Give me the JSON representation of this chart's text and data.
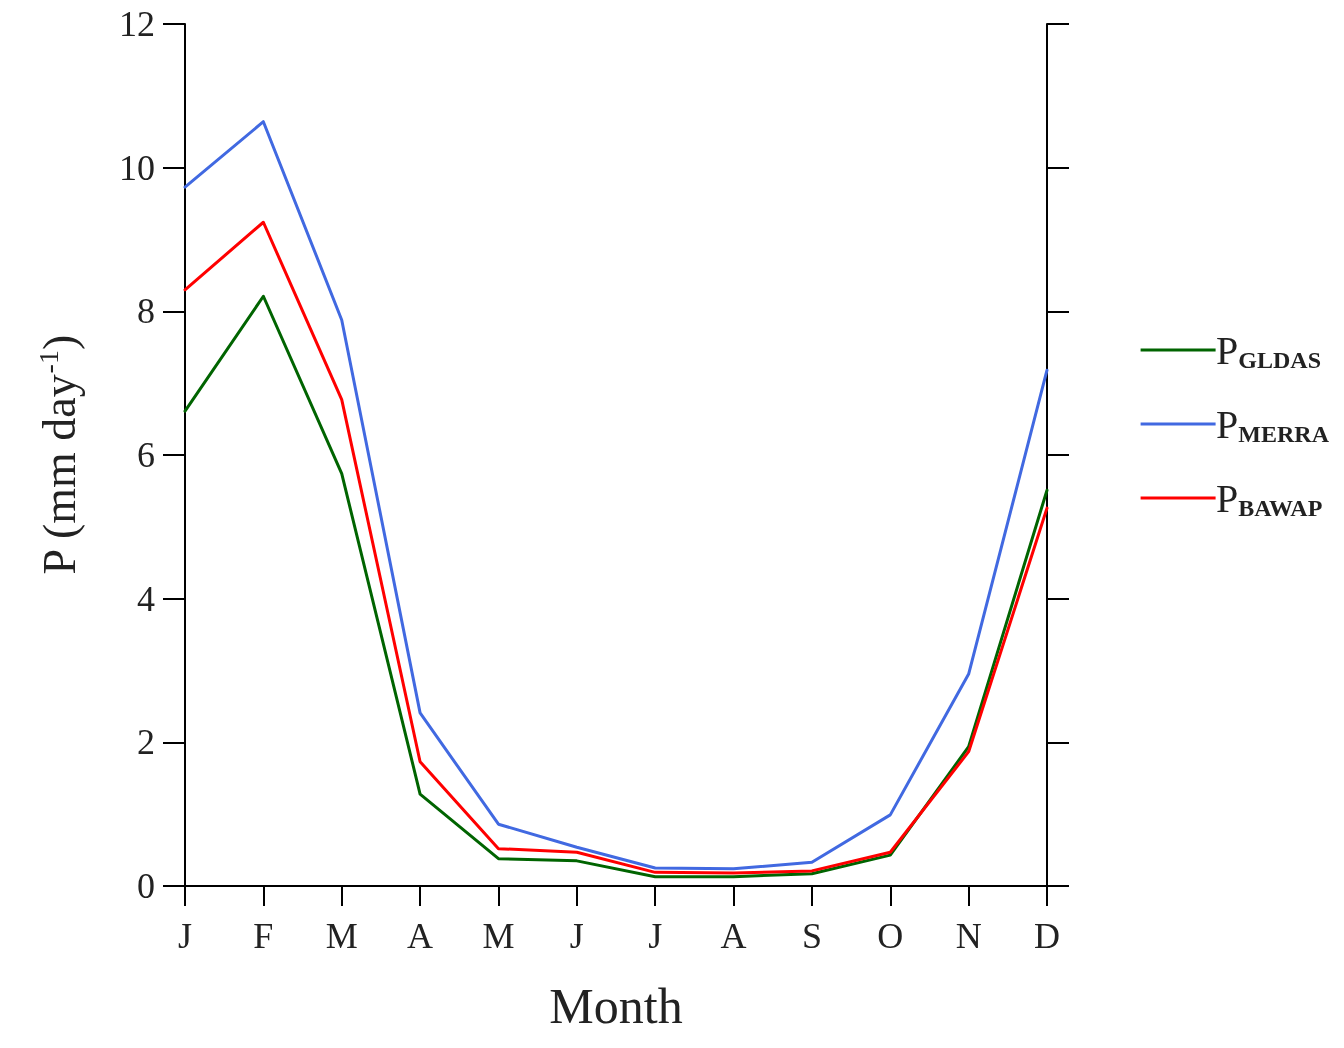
{
  "chart_data": {
    "type": "line",
    "xlabel": "Month",
    "ylabel": "P (mm day$^{-1}$)",
    "categories": [
      "J",
      "F",
      "M",
      "A",
      "M",
      "J",
      "J",
      "A",
      "S",
      "O",
      "N",
      "D"
    ],
    "ylim": [
      0,
      12
    ],
    "yticks": [
      0,
      2,
      4,
      6,
      8,
      10,
      12
    ],
    "grid": false,
    "legend": "right",
    "marker": "none",
    "line_style": "solid",
    "series": [
      {
        "name": "P$_{GLDAS}$",
        "color": "#006400",
        "values": [
          6.61,
          8.21,
          5.74,
          1.28,
          0.38,
          0.35,
          0.13,
          0.13,
          0.17,
          0.43,
          1.94,
          5.51
        ]
      },
      {
        "name": "P$_{MERRA}$",
        "color": "#4169e1",
        "values": [
          9.73,
          10.64,
          7.88,
          2.41,
          0.86,
          0.54,
          0.25,
          0.24,
          0.33,
          0.99,
          2.95,
          7.18
        ]
      },
      {
        "name": "P$_{BAWAP}$",
        "color": "#ff0000",
        "values": [
          8.3,
          9.24,
          6.77,
          1.73,
          0.52,
          0.47,
          0.19,
          0.18,
          0.21,
          0.47,
          1.87,
          5.26
        ]
      }
    ]
  }
}
